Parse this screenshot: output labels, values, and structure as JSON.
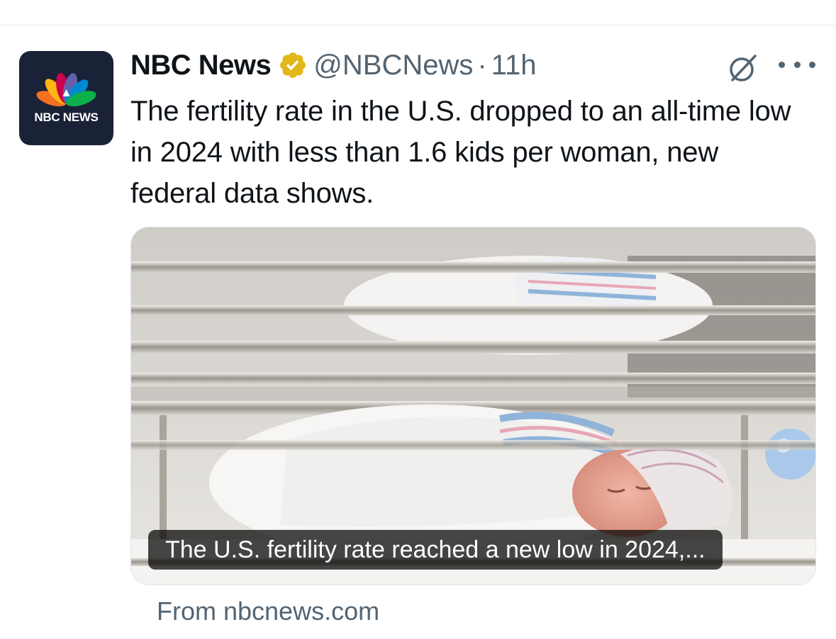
{
  "tweet": {
    "display_name": "NBC News",
    "verified": true,
    "verified_badge_color": "#E2B719",
    "handle": "@NBCNews",
    "separator": "·",
    "timestamp": "11h",
    "text": "The fertility rate in the U.S. dropped to an all-time low in 2024 with less than 1.6 kids per woman, new federal data shows.",
    "avatar": {
      "logo_text": "NBC NEWS",
      "background_color": "#1A2238"
    },
    "actions": {
      "grok_icon": "grok-icon",
      "more_icon": "more-dots-icon"
    },
    "card": {
      "caption": "The U.S. fertility rate reached a new low in 2024,...",
      "image_icon": "newborn-bassinets-photo",
      "source_text": "From nbcnews.com"
    }
  }
}
